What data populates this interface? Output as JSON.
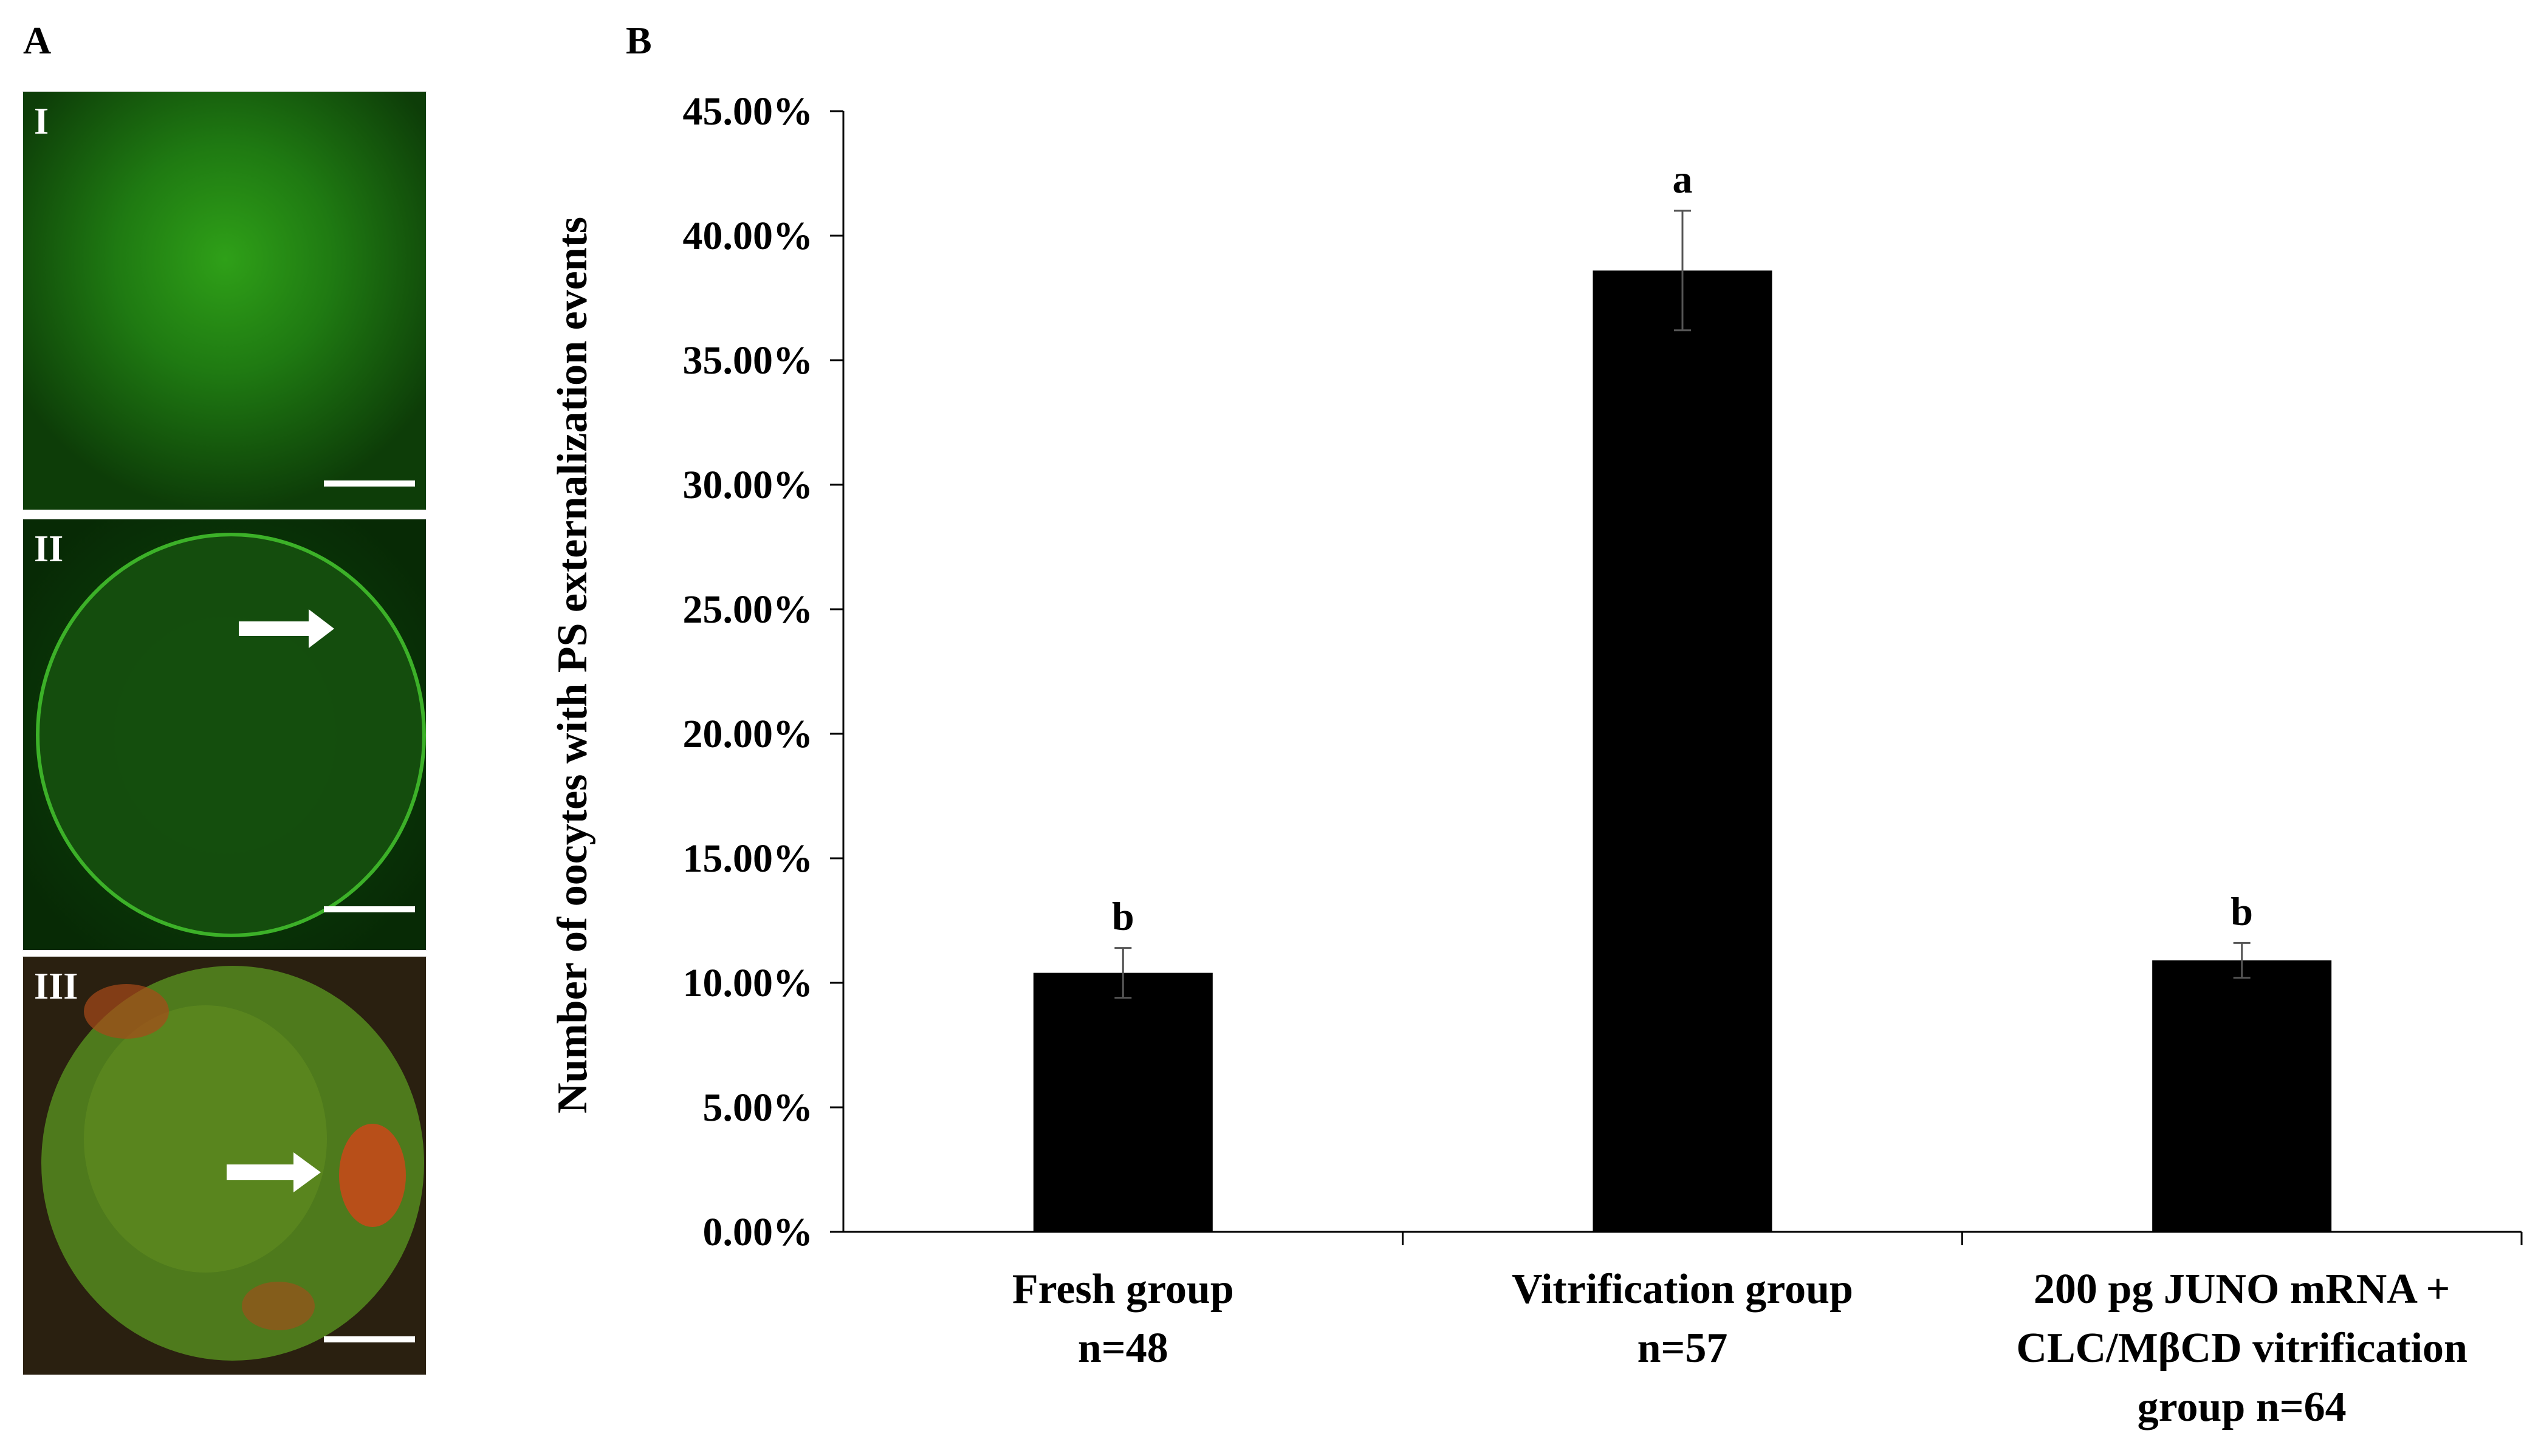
{
  "panel_a": {
    "label": "A",
    "images": [
      {
        "roman": "I",
        "fluorescence": "green diffuse",
        "arrow": false
      },
      {
        "roman": "II",
        "fluorescence": "green membrane ring",
        "arrow": true
      },
      {
        "roman": "III",
        "fluorescence": "green with red patches",
        "arrow": true
      }
    ]
  },
  "panel_b": {
    "label": "B"
  },
  "chart_data": {
    "type": "bar",
    "categories": [
      [
        "Fresh group",
        "n=48"
      ],
      [
        "Vitrification group",
        "n=57"
      ],
      [
        "200 pg JUNO mRNA +",
        "CLC/MβCD vitrification",
        "group n=64"
      ]
    ],
    "series": [
      {
        "values": [
          10.4,
          38.6,
          10.9
        ],
        "errors": [
          1.0,
          2.4,
          0.7
        ],
        "color": "#000000"
      }
    ],
    "significance": [
      "b",
      "a",
      "b"
    ],
    "ylabel": "Number of  oocytes with PS externalization events",
    "ylim": [
      0,
      45
    ],
    "yticks": [
      "0.00%",
      "5.00%",
      "10.00%",
      "15.00%",
      "20.00%",
      "25.00%",
      "30.00%",
      "35.00%",
      "40.00%",
      "45.00%"
    ],
    "ytick_values": [
      0,
      5,
      10,
      15,
      20,
      25,
      30,
      35,
      40,
      45
    ],
    "grid": false,
    "legend": "none"
  }
}
